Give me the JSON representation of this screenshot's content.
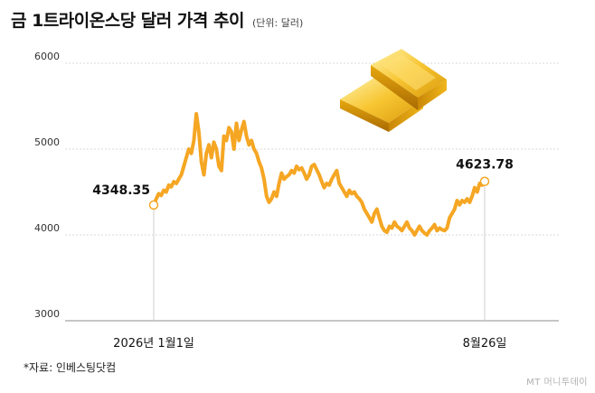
{
  "title": "금 1트라이온스당 달러 가격 추이",
  "unit": "(단위: 달러)",
  "source": "*자료: 인베스팅닷컴",
  "logo": "MT 머니투데이",
  "colors": {
    "line": "#f5a623",
    "grid": "#d9d9d9",
    "axis": "#8c8c8c",
    "text": "#111111",
    "marker_fill": "#ffffff"
  },
  "illustration": "gold-bars",
  "chart_data": {
    "type": "line",
    "title": "금 1트라이온스당 달러 가격 추이",
    "unit": "(단위: 달러)",
    "xlabel": "",
    "ylabel": "",
    "ylim": [
      3000,
      6000
    ],
    "yticks": [
      6000,
      5000,
      4000,
      3000
    ],
    "grid": true,
    "x_tick_labels": [
      "2026년 1월1일",
      "8월26일"
    ],
    "start_label": "4348.35",
    "end_label": "4623.78",
    "series": [
      {
        "values": [
          4348.35,
          4420,
          4480,
          4460,
          4520,
          4500,
          4580,
          4560,
          4620,
          4600,
          4650,
          4700,
          4800,
          4900,
          5000,
          4950,
          5100,
          5410,
          5200,
          4850,
          4700,
          4950,
          5050,
          4900,
          5080,
          5000,
          4800,
          4750,
          5150,
          5100,
          5250,
          5200,
          5000,
          5300,
          5100,
          5220,
          5320,
          5150,
          5050,
          5100,
          5000,
          4950,
          4850,
          4780,
          4650,
          4450,
          4380,
          4420,
          4500,
          4450,
          4600,
          4720,
          4650,
          4680,
          4700,
          4750,
          4720,
          4800,
          4760,
          4780,
          4720,
          4650,
          4700,
          4800,
          4820,
          4760,
          4700,
          4620,
          4550,
          4600,
          4580,
          4650,
          4700,
          4750,
          4600,
          4550,
          4500,
          4450,
          4520,
          4480,
          4500,
          4450,
          4420,
          4380,
          4300,
          4250,
          4200,
          4150,
          4250,
          4300,
          4200,
          4100,
          4050,
          4030,
          4100,
          4080,
          4150,
          4100,
          4080,
          4050,
          4100,
          4150,
          4080,
          4050,
          4000,
          4050,
          4100,
          4050,
          4020,
          4000,
          4050,
          4080,
          4120,
          4050,
          4080,
          4060,
          4050,
          4080,
          4200,
          4250,
          4300,
          4400,
          4350,
          4400,
          4380,
          4420,
          4380,
          4450,
          4550,
          4500,
          4600,
          4580,
          4623.78
        ]
      }
    ]
  }
}
